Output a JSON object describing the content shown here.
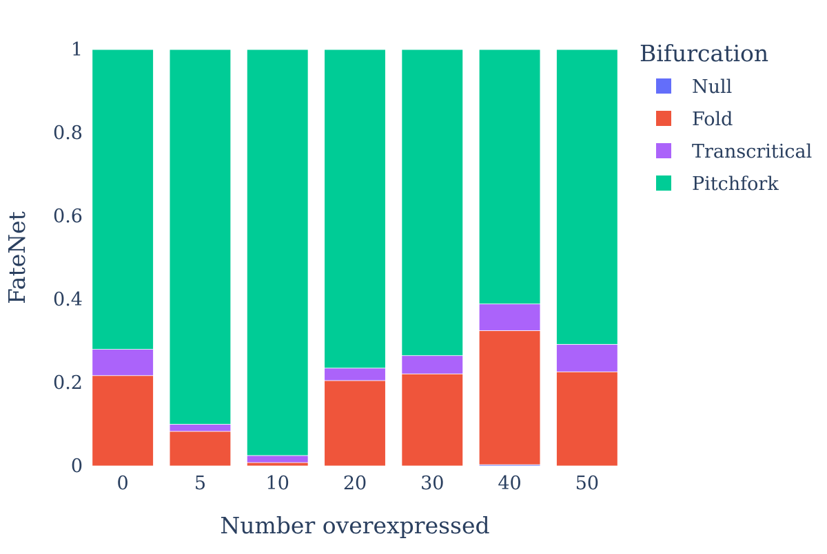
{
  "chart_data": {
    "type": "bar",
    "stacked": true,
    "categories": [
      "0",
      "5",
      "10",
      "20",
      "30",
      "40",
      "50"
    ],
    "xlabel": "Number overexpressed",
    "ylabel": "FateNet",
    "ylim": [
      0,
      1
    ],
    "yticks": [
      {
        "value": 0,
        "label": "0"
      },
      {
        "value": 0.2,
        "label": "0.2"
      },
      {
        "value": 0.4,
        "label": "0.4"
      },
      {
        "value": 0.6,
        "label": "0.6"
      },
      {
        "value": 0.8,
        "label": "0.8"
      },
      {
        "value": 1,
        "label": "1"
      }
    ],
    "grid": false,
    "legend": {
      "title": "Bifurcation",
      "placement": "top-right"
    },
    "series": [
      {
        "name": "Null",
        "color": "#636efa",
        "values": [
          0,
          0,
          0,
          0,
          0,
          0.003,
          0
        ]
      },
      {
        "name": "Fold",
        "color": "#ef553b",
        "values": [
          0.217,
          0.083,
          0.008,
          0.205,
          0.221,
          0.322,
          0.226
        ]
      },
      {
        "name": "Transcritical",
        "color": "#ab63fa",
        "values": [
          0.063,
          0.017,
          0.017,
          0.03,
          0.044,
          0.064,
          0.066
        ]
      },
      {
        "name": "Pitchfork",
        "color": "#00cc96",
        "values": [
          0.72,
          0.9,
          0.975,
          0.765,
          0.735,
          0.611,
          0.708
        ]
      }
    ]
  }
}
